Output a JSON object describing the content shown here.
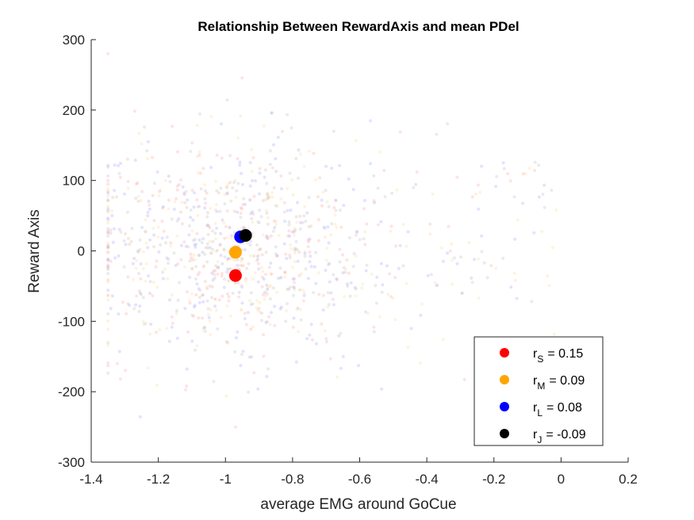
{
  "chart_data": {
    "type": "scatter",
    "title": "Relationship Between RewardAxis and mean PDel",
    "xlabel": "average EMG around GoCue",
    "ylabel": "Reward Axis",
    "xlim": [
      -1.4,
      0.2
    ],
    "ylim": [
      -300,
      300
    ],
    "xticks": [
      -1.4,
      -1.2,
      -1,
      -0.8,
      -0.6,
      -0.4,
      -0.2,
      0,
      0.2
    ],
    "xtick_labels": [
      "-1.4",
      "-1.2",
      "-1",
      "-0.8",
      "-0.6",
      "-0.4",
      "-0.2",
      "0",
      "0.2"
    ],
    "yticks": [
      -300,
      -200,
      -100,
      0,
      100,
      200,
      300
    ],
    "ytick_labels": [
      "-300",
      "-200",
      "-100",
      "0",
      "100",
      "200",
      "300"
    ],
    "grid": false,
    "legend_position": "bottom-right",
    "background_points": {
      "colors": [
        "#ff9a9a",
        "#ffd38a",
        "#9a9aff",
        "#b8b8b8"
      ],
      "opacity": 0.28,
      "count_per_color": 260,
      "x_center": -1.0,
      "x_spread": 0.2,
      "y_center": 0,
      "y_spread": 75
    },
    "series": [
      {
        "name_main": "r",
        "name_sub": "S",
        "label_value": "= 0.15",
        "color": "#ff0000",
        "x": -0.97,
        "y": -35
      },
      {
        "name_main": "r",
        "name_sub": "M",
        "label_value": "= 0.09",
        "color": "#ffa500",
        "x": -0.97,
        "y": -2
      },
      {
        "name_main": "r",
        "name_sub": "L",
        "label_value": "= 0.08",
        "color": "#0000ff",
        "x": -0.955,
        "y": 20
      },
      {
        "name_main": "r",
        "name_sub": "J",
        "label_value": "= -0.09",
        "color": "#000000",
        "x": -0.94,
        "y": 22
      }
    ]
  }
}
